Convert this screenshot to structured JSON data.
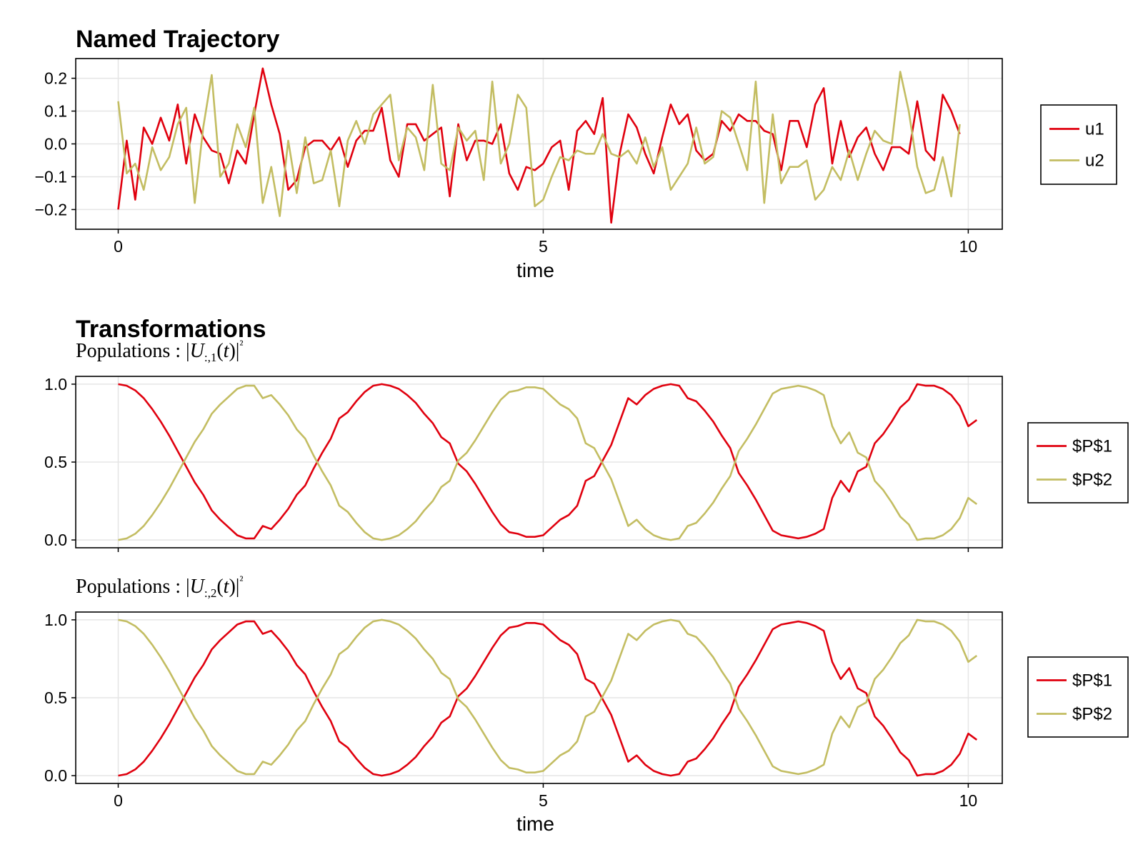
{
  "colors": {
    "series1": "#e0000e",
    "series2": "#c3bd62",
    "grid": "#e5e5e5",
    "frame": "#000000"
  },
  "chart_data": [
    {
      "id": "named-trajectory",
      "type": "line",
      "title": "Named Trajectory",
      "subtitle": "",
      "xlabel": "time",
      "ylabel": "",
      "xlim": [
        -0.5,
        10.4
      ],
      "ylim": [
        -0.26,
        0.26
      ],
      "xticks": [
        0,
        5,
        10
      ],
      "xtick_labels": [
        "0",
        "5",
        "10"
      ],
      "yticks": [
        -0.2,
        -0.1,
        0.0,
        0.1,
        0.2
      ],
      "ytick_labels": [
        "−0.2",
        "−0.1",
        "0.0",
        "0.1",
        "0.2"
      ],
      "grid": true,
      "legend": "right",
      "x_start": 0,
      "x_step": 0.1,
      "series": [
        {
          "name": "u1",
          "values": [
            -0.2,
            0.01,
            -0.17,
            0.05,
            0.0,
            0.08,
            0.01,
            0.12,
            -0.06,
            0.09,
            0.02,
            -0.02,
            -0.03,
            -0.12,
            -0.02,
            -0.06,
            0.09,
            0.23,
            0.12,
            0.03,
            -0.14,
            -0.11,
            -0.01,
            0.01,
            0.01,
            -0.02,
            0.02,
            -0.07,
            0.01,
            0.04,
            0.04,
            0.11,
            -0.05,
            -0.1,
            0.06,
            0.06,
            0.01,
            0.03,
            0.05,
            -0.16,
            0.06,
            -0.05,
            0.01,
            0.01,
            0.0,
            0.06,
            -0.09,
            -0.14,
            -0.07,
            -0.08,
            -0.06,
            -0.01,
            0.01,
            -0.14,
            0.04,
            0.07,
            0.03,
            0.14,
            -0.24,
            -0.03,
            0.09,
            0.05,
            -0.03,
            -0.09,
            0.02,
            0.12,
            0.06,
            0.09,
            -0.02,
            -0.05,
            -0.03,
            0.07,
            0.04,
            0.09,
            0.07,
            0.07,
            0.04,
            0.03,
            -0.08,
            0.07,
            0.07,
            -0.01,
            0.12,
            0.17,
            -0.06,
            0.07,
            -0.04,
            0.02,
            0.05,
            -0.03,
            -0.08,
            -0.01,
            -0.01,
            -0.03,
            0.13,
            -0.02,
            -0.05,
            0.15,
            0.1,
            0.03
          ]
        },
        {
          "name": "u2",
          "values": [
            0.13,
            -0.09,
            -0.06,
            -0.14,
            -0.01,
            -0.08,
            -0.04,
            0.06,
            0.11,
            -0.18,
            0.05,
            0.21,
            -0.1,
            -0.06,
            0.06,
            -0.01,
            0.11,
            -0.18,
            -0.07,
            -0.22,
            0.01,
            -0.15,
            0.02,
            -0.12,
            -0.11,
            -0.02,
            -0.19,
            0.01,
            0.07,
            0.0,
            0.09,
            0.12,
            0.15,
            -0.05,
            0.05,
            0.02,
            -0.08,
            0.18,
            -0.06,
            -0.08,
            0.05,
            0.01,
            0.04,
            -0.11,
            0.19,
            -0.06,
            0.0,
            0.15,
            0.11,
            -0.19,
            -0.17,
            -0.1,
            -0.04,
            -0.05,
            -0.02,
            -0.03,
            -0.03,
            0.03,
            -0.03,
            -0.04,
            -0.02,
            -0.06,
            0.02,
            -0.07,
            -0.01,
            -0.14,
            -0.1,
            -0.06,
            0.05,
            -0.06,
            -0.04,
            0.1,
            0.08,
            0.0,
            -0.08,
            0.19,
            -0.18,
            0.09,
            -0.12,
            -0.07,
            -0.07,
            -0.05,
            -0.17,
            -0.14,
            -0.07,
            -0.11,
            -0.02,
            -0.11,
            -0.03,
            0.04,
            0.01,
            0.0,
            0.22,
            0.1,
            -0.07,
            -0.15,
            -0.14,
            -0.04,
            -0.16,
            0.06
          ]
        }
      ]
    },
    {
      "id": "transformations-col1",
      "type": "line",
      "title": "Transformations",
      "subtitle": "Populations :  |U:,1(t)|²",
      "xlabel": "",
      "ylabel": "",
      "xlim": [
        -0.5,
        10.4
      ],
      "ylim": [
        -0.05,
        1.05
      ],
      "xticks": [
        0,
        5,
        10
      ],
      "xtick_labels": [],
      "yticks": [
        0.0,
        0.5,
        1.0
      ],
      "ytick_labels": [
        "0.0",
        "0.5",
        "1.0"
      ],
      "grid": true,
      "legend": "right",
      "x_start": 0,
      "x_step": 0.1,
      "series": [
        {
          "name": "$P$1",
          "values": [
            1.0,
            0.99,
            0.96,
            0.91,
            0.84,
            0.76,
            0.67,
            0.57,
            0.47,
            0.37,
            0.29,
            0.19,
            0.13,
            0.08,
            0.03,
            0.01,
            0.01,
            0.09,
            0.07,
            0.13,
            0.2,
            0.29,
            0.35,
            0.46,
            0.56,
            0.65,
            0.78,
            0.82,
            0.89,
            0.95,
            0.99,
            1.0,
            0.99,
            0.97,
            0.93,
            0.88,
            0.81,
            0.75,
            0.66,
            0.62,
            0.49,
            0.44,
            0.36,
            0.27,
            0.18,
            0.1,
            0.05,
            0.04,
            0.02,
            0.02,
            0.03,
            0.08,
            0.13,
            0.16,
            0.22,
            0.38,
            0.41,
            0.51,
            0.61,
            0.76,
            0.91,
            0.87,
            0.93,
            0.97,
            0.99,
            1.0,
            0.99,
            0.91,
            0.89,
            0.83,
            0.76,
            0.67,
            0.59,
            0.43,
            0.35,
            0.26,
            0.16,
            0.06,
            0.03,
            0.02,
            0.01,
            0.02,
            0.04,
            0.07,
            0.27,
            0.38,
            0.31,
            0.44,
            0.47,
            0.62,
            0.68,
            0.76,
            0.85,
            0.9,
            1.0,
            0.99,
            0.99,
            0.97,
            0.93,
            0.86,
            0.73,
            0.77
          ]
        },
        {
          "name": "$P$2",
          "values": [
            0.0,
            0.01,
            0.04,
            0.09,
            0.16,
            0.24,
            0.33,
            0.43,
            0.53,
            0.63,
            0.71,
            0.81,
            0.87,
            0.92,
            0.97,
            0.99,
            0.99,
            0.91,
            0.93,
            0.87,
            0.8,
            0.71,
            0.65,
            0.54,
            0.44,
            0.35,
            0.22,
            0.18,
            0.11,
            0.05,
            0.01,
            0.0,
            0.01,
            0.03,
            0.07,
            0.12,
            0.19,
            0.25,
            0.34,
            0.38,
            0.51,
            0.56,
            0.64,
            0.73,
            0.82,
            0.9,
            0.95,
            0.96,
            0.98,
            0.98,
            0.97,
            0.92,
            0.87,
            0.84,
            0.78,
            0.62,
            0.59,
            0.49,
            0.39,
            0.24,
            0.09,
            0.13,
            0.07,
            0.03,
            0.01,
            0.0,
            0.01,
            0.09,
            0.11,
            0.17,
            0.24,
            0.33,
            0.41,
            0.57,
            0.65,
            0.74,
            0.84,
            0.94,
            0.97,
            0.98,
            0.99,
            0.98,
            0.96,
            0.93,
            0.73,
            0.62,
            0.69,
            0.56,
            0.53,
            0.38,
            0.32,
            0.24,
            0.15,
            0.1,
            0.0,
            0.01,
            0.01,
            0.03,
            0.07,
            0.14,
            0.27,
            0.23
          ]
        }
      ]
    },
    {
      "id": "transformations-col2",
      "type": "line",
      "title": "",
      "subtitle": "Populations :  |U:,2(t)|²",
      "xlabel": "time",
      "ylabel": "",
      "xlim": [
        -0.5,
        10.4
      ],
      "ylim": [
        -0.05,
        1.05
      ],
      "xticks": [
        0,
        5,
        10
      ],
      "xtick_labels": [
        "0",
        "5",
        "10"
      ],
      "yticks": [
        0.0,
        0.5,
        1.0
      ],
      "ytick_labels": [
        "0.0",
        "0.5",
        "1.0"
      ],
      "grid": true,
      "legend": "right",
      "x_start": 0,
      "x_step": 0.1,
      "series": [
        {
          "name": "$P$1",
          "values": [
            0.0,
            0.01,
            0.04,
            0.09,
            0.16,
            0.24,
            0.33,
            0.43,
            0.53,
            0.63,
            0.71,
            0.81,
            0.87,
            0.92,
            0.97,
            0.99,
            0.99,
            0.91,
            0.93,
            0.87,
            0.8,
            0.71,
            0.65,
            0.54,
            0.44,
            0.35,
            0.22,
            0.18,
            0.11,
            0.05,
            0.01,
            0.0,
            0.01,
            0.03,
            0.07,
            0.12,
            0.19,
            0.25,
            0.34,
            0.38,
            0.51,
            0.56,
            0.64,
            0.73,
            0.82,
            0.9,
            0.95,
            0.96,
            0.98,
            0.98,
            0.97,
            0.92,
            0.87,
            0.84,
            0.78,
            0.62,
            0.59,
            0.49,
            0.39,
            0.24,
            0.09,
            0.13,
            0.07,
            0.03,
            0.01,
            0.0,
            0.01,
            0.09,
            0.11,
            0.17,
            0.24,
            0.33,
            0.41,
            0.57,
            0.65,
            0.74,
            0.84,
            0.94,
            0.97,
            0.98,
            0.99,
            0.98,
            0.96,
            0.93,
            0.73,
            0.62,
            0.69,
            0.56,
            0.53,
            0.38,
            0.32,
            0.24,
            0.15,
            0.1,
            0.0,
            0.01,
            0.01,
            0.03,
            0.07,
            0.14,
            0.27,
            0.23
          ]
        },
        {
          "name": "$P$2",
          "values": [
            1.0,
            0.99,
            0.96,
            0.91,
            0.84,
            0.76,
            0.67,
            0.57,
            0.47,
            0.37,
            0.29,
            0.19,
            0.13,
            0.08,
            0.03,
            0.01,
            0.01,
            0.09,
            0.07,
            0.13,
            0.2,
            0.29,
            0.35,
            0.46,
            0.56,
            0.65,
            0.78,
            0.82,
            0.89,
            0.95,
            0.99,
            1.0,
            0.99,
            0.97,
            0.93,
            0.88,
            0.81,
            0.75,
            0.66,
            0.62,
            0.49,
            0.44,
            0.36,
            0.27,
            0.18,
            0.1,
            0.05,
            0.04,
            0.02,
            0.02,
            0.03,
            0.08,
            0.13,
            0.16,
            0.22,
            0.38,
            0.41,
            0.51,
            0.61,
            0.76,
            0.91,
            0.87,
            0.93,
            0.97,
            0.99,
            1.0,
            0.99,
            0.91,
            0.89,
            0.83,
            0.76,
            0.67,
            0.59,
            0.43,
            0.35,
            0.26,
            0.16,
            0.06,
            0.03,
            0.02,
            0.01,
            0.02,
            0.04,
            0.07,
            0.27,
            0.38,
            0.31,
            0.44,
            0.47,
            0.62,
            0.68,
            0.76,
            0.85,
            0.9,
            1.0,
            0.99,
            0.99,
            0.97,
            0.93,
            0.86,
            0.73,
            0.77
          ]
        }
      ]
    }
  ]
}
